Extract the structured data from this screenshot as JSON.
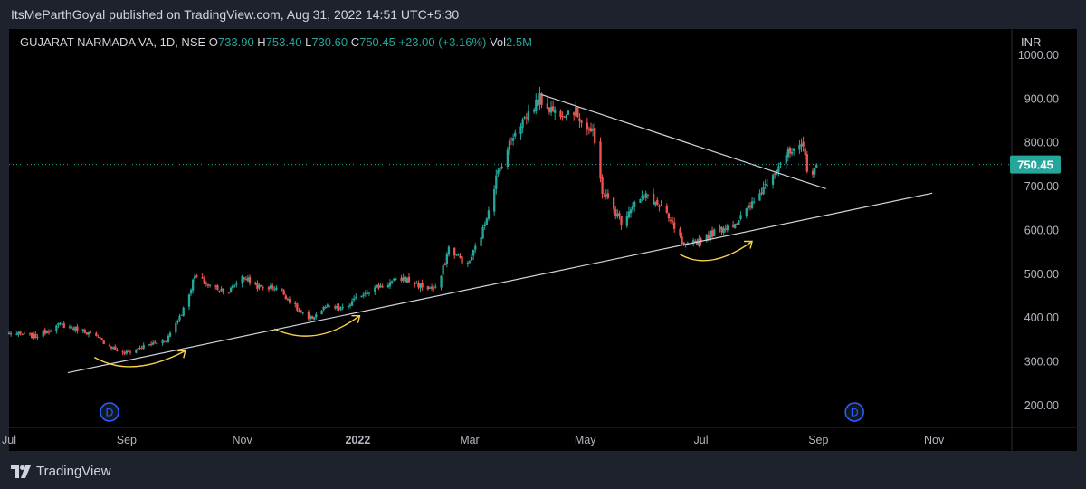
{
  "header": {
    "publisher_line": "ItsMeParthGoyal published on TradingView.com, Aug 31, 2022 14:51 UTC+5:30"
  },
  "legend": {
    "symbol": "GUJARAT NARMADA VA, 1D, NSE",
    "o_label": "O",
    "o_value": "733.90",
    "h_label": "H",
    "h_value": "753.40",
    "l_label": "L",
    "l_value": "730.60",
    "c_label": "C",
    "c_value": "750.45",
    "change": "+23.00 (+3.16%)",
    "vol_label": "Vol",
    "vol_value": "2.5M"
  },
  "currency": "INR",
  "footer": {
    "brand": "TradingView"
  },
  "colors": {
    "up": "#26a69a",
    "down": "#ef5350",
    "trendline": "#d1d4dc",
    "annotation": "#f7d44c",
    "event": "#2962ff"
  },
  "chart_data": {
    "type": "candlestick",
    "y_ticks": [
      "200.00",
      "300.00",
      "400.00",
      "500.00",
      "600.00",
      "700.00",
      "800.00",
      "900.00",
      "1000.00"
    ],
    "ylim": [
      150,
      1060
    ],
    "x_ticks": [
      "Jul",
      "Sep",
      "Nov",
      "2022",
      "Mar",
      "May",
      "Jul",
      "Sep",
      "Nov"
    ],
    "x_tick_dates": [
      "2021-07-01",
      "2021-09-01",
      "2021-11-01",
      "2022-01-01",
      "2022-03-01",
      "2022-05-01",
      "2022-07-01",
      "2022-09-01",
      "2022-11-01"
    ],
    "xlim": [
      "2021-07-01",
      "2022-12-12"
    ],
    "last_price": "750.45",
    "last_price_value": 750.45,
    "path": [
      [
        "2021-07-01",
        365
      ],
      [
        "2021-07-15",
        358
      ],
      [
        "2021-07-28",
        385
      ],
      [
        "2021-08-10",
        370
      ],
      [
        "2021-08-20",
        345
      ],
      [
        "2021-08-30",
        318
      ],
      [
        "2021-09-10",
        335
      ],
      [
        "2021-09-22",
        350
      ],
      [
        "2021-10-01",
        420
      ],
      [
        "2021-10-07",
        495
      ],
      [
        "2021-10-14",
        475
      ],
      [
        "2021-10-25",
        460
      ],
      [
        "2021-11-01",
        495
      ],
      [
        "2021-11-10",
        470
      ],
      [
        "2021-11-20",
        470
      ],
      [
        "2021-11-30",
        420
      ],
      [
        "2021-12-06",
        395
      ],
      [
        "2021-12-15",
        425
      ],
      [
        "2021-12-25",
        420
      ],
      [
        "2022-01-03",
        455
      ],
      [
        "2022-01-14",
        475
      ],
      [
        "2022-01-25",
        490
      ],
      [
        "2022-02-05",
        470
      ],
      [
        "2022-02-12",
        465
      ],
      [
        "2022-02-18",
        560
      ],
      [
        "2022-02-28",
        520
      ],
      [
        "2022-03-08",
        600
      ],
      [
        "2022-03-15",
        720
      ],
      [
        "2022-03-25",
        830
      ],
      [
        "2022-04-07",
        900
      ],
      [
        "2022-04-15",
        870
      ],
      [
        "2022-04-25",
        875
      ],
      [
        "2022-05-05",
        820
      ],
      [
        "2022-05-10",
        690
      ],
      [
        "2022-05-20",
        620
      ],
      [
        "2022-05-26",
        660
      ],
      [
        "2022-06-03",
        680
      ],
      [
        "2022-06-10",
        650
      ],
      [
        "2022-06-18",
        600
      ],
      [
        "2022-06-22",
        560
      ],
      [
        "2022-07-01",
        580
      ],
      [
        "2022-07-10",
        600
      ],
      [
        "2022-07-20",
        620
      ],
      [
        "2022-07-30",
        670
      ],
      [
        "2022-08-06",
        720
      ],
      [
        "2022-08-14",
        770
      ],
      [
        "2022-08-20",
        780
      ],
      [
        "2022-08-24",
        790
      ],
      [
        "2022-08-27",
        720
      ],
      [
        "2022-08-31",
        750.45
      ]
    ],
    "trendlines": [
      {
        "name": "support",
        "from": [
          "2021-08-01",
          275
        ],
        "to": [
          "2022-10-31",
          685
        ]
      },
      {
        "name": "resistance",
        "from": [
          "2022-04-08",
          910
        ],
        "to": [
          "2022-09-05",
          695
        ]
      }
    ],
    "dividend_markers": [
      {
        "label": "D",
        "date": "2021-08-23"
      },
      {
        "label": "D",
        "date": "2022-09-20"
      }
    ],
    "annotation_curves": [
      {
        "from": [
          "2021-08-15",
          310
        ],
        "dip": [
          "2021-09-04",
          290
        ],
        "to": [
          "2021-10-02",
          325
        ]
      },
      {
        "from": [
          "2021-11-18",
          375
        ],
        "dip": [
          "2021-12-10",
          360
        ],
        "to": [
          "2022-01-02",
          405
        ]
      },
      {
        "from": [
          "2022-06-20",
          545
        ],
        "dip": [
          "2022-07-06",
          535
        ],
        "to": [
          "2022-07-28",
          575
        ]
      }
    ]
  }
}
